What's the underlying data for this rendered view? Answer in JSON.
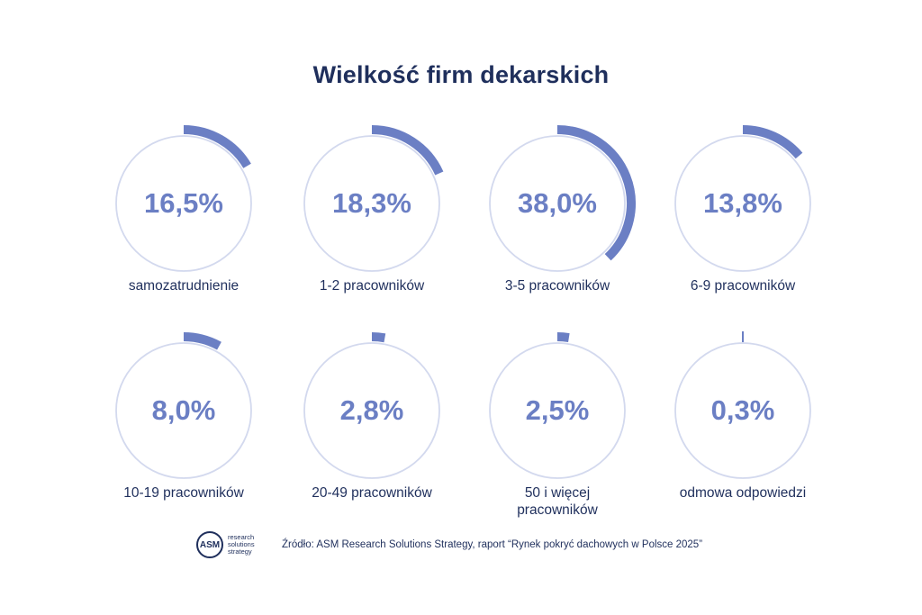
{
  "title": "Wielkość firm dekarskich",
  "colors": {
    "accent": "#6b7fc4",
    "ring": "#d3d9ee",
    "text": "#1f2f5c"
  },
  "chart_data": {
    "type": "radial-progress",
    "title": "Wielkość firm dekarskich",
    "unit": "%",
    "items": [
      {
        "label": "samozatrudnienie",
        "value": 16.5,
        "display": "16,5%"
      },
      {
        "label": "1-2 pracowników",
        "value": 18.3,
        "display": "18,3%"
      },
      {
        "label": "3-5 pracowników",
        "value": 38.0,
        "display": "38,0%"
      },
      {
        "label": "6-9 pracowników",
        "value": 13.8,
        "display": "13,8%"
      },
      {
        "label": "10-19 pracowników",
        "value": 8.0,
        "display": "8,0%"
      },
      {
        "label": "20-49 pracowników",
        "value": 2.8,
        "display": "2,8%"
      },
      {
        "label": "50 i więcej pracowników",
        "value": 2.5,
        "display": "2,5%"
      },
      {
        "label": "odmowa odpowiedzi",
        "value": 0.3,
        "display": "0,3%"
      }
    ]
  },
  "footer": {
    "logo_abbr": "ASM",
    "logo_text": "research solutions strategy",
    "source": "Źródło: ASM Research Solutions Strategy, raport “Rynek pokryć dachowych w Polsce 2025”"
  }
}
